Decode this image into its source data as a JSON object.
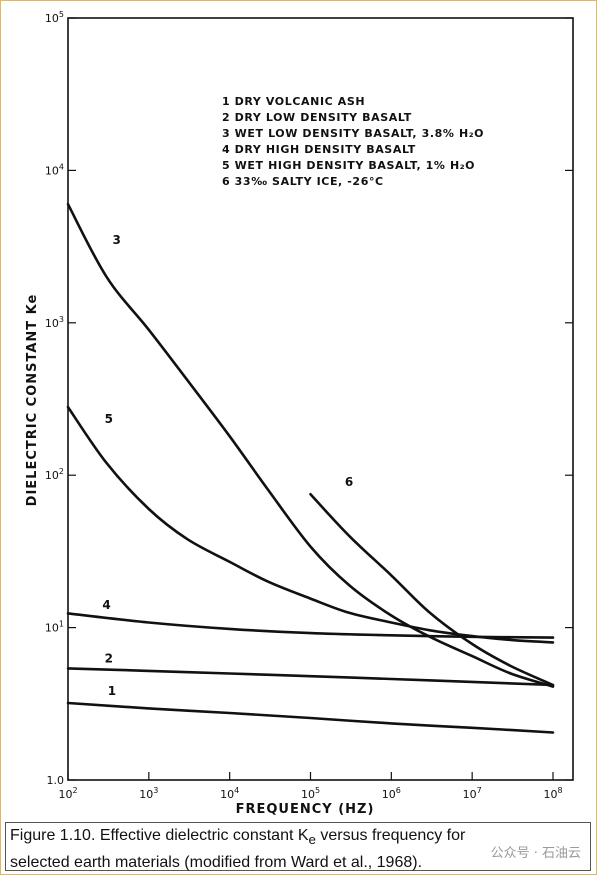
{
  "chart_data": {
    "type": "line",
    "xlabel": "FREQUENCY (HZ)",
    "ylabel": "DIELECTRIC CONSTANT Ke",
    "x_scale": "log",
    "y_scale": "log",
    "xlim": [
      100,
      100000000
    ],
    "ylim": [
      1,
      100000
    ],
    "grid": false,
    "legend_placement": "top-right",
    "x_ticks": [
      {
        "value": 100,
        "base": "10",
        "exp": "2"
      },
      {
        "value": 1000,
        "base": "10",
        "exp": "3"
      },
      {
        "value": 10000,
        "base": "10",
        "exp": "4"
      },
      {
        "value": 100000,
        "base": "10",
        "exp": "5"
      },
      {
        "value": 1000000,
        "base": "10",
        "exp": "6"
      },
      {
        "value": 10000000,
        "base": "10",
        "exp": "7"
      },
      {
        "value": 100000000,
        "base": "10",
        "exp": "8"
      }
    ],
    "y_ticks": [
      {
        "value": 1,
        "base": "1.0",
        "exp": ""
      },
      {
        "value": 10,
        "base": "10",
        "exp": "1"
      },
      {
        "value": 100,
        "base": "10",
        "exp": "2"
      },
      {
        "value": 1000,
        "base": "10",
        "exp": "3"
      },
      {
        "value": 10000,
        "base": "10",
        "exp": "4"
      },
      {
        "value": 100000,
        "base": "10",
        "exp": "5"
      }
    ],
    "legend": [
      "1  DRY VOLCANIC ASH",
      "2  DRY LOW DENSITY BASALT",
      "3  WET LOW DENSITY BASALT, 3.8% H₂O",
      "4  DRY HIGH DENSITY BASALT",
      "5  WET HIGH DENSITY BASALT, 1% H₂O",
      "6  33‰ SALTY ICE, -26°C"
    ],
    "series": [
      {
        "name": "1",
        "x": [
          100,
          1000,
          10000,
          100000,
          1000000,
          10000000,
          100000000
        ],
        "y": [
          3.2,
          2.95,
          2.75,
          2.55,
          2.35,
          2.2,
          2.05
        ]
      },
      {
        "name": "2",
        "x": [
          100,
          1000,
          10000,
          100000,
          1000000,
          10000000,
          100000000
        ],
        "y": [
          5.4,
          5.2,
          5.0,
          4.8,
          4.6,
          4.4,
          4.2
        ]
      },
      {
        "name": "3",
        "x": [
          100,
          300,
          1000,
          3000,
          10000,
          30000,
          100000,
          300000,
          1000000,
          3000000,
          10000000,
          30000000,
          100000000
        ],
        "y": [
          6000,
          2000,
          900,
          420,
          180,
          80,
          34,
          19,
          12,
          8.7,
          6.5,
          5.0,
          4.1
        ]
      },
      {
        "name": "4",
        "x": [
          100,
          1000,
          10000,
          100000,
          1000000,
          10000000,
          100000000
        ],
        "y": [
          12.4,
          10.8,
          9.8,
          9.2,
          8.9,
          8.7,
          8.6
        ]
      },
      {
        "name": "5",
        "x": [
          100,
          300,
          1000,
          3000,
          10000,
          30000,
          100000,
          300000,
          1000000,
          3000000,
          10000000,
          30000000,
          100000000
        ],
        "y": [
          280,
          120,
          60,
          38,
          27,
          20,
          15.5,
          12.5,
          10.8,
          9.6,
          8.8,
          8.3,
          8.0
        ]
      },
      {
        "name": "6",
        "x": [
          100000,
          300000,
          1000000,
          3000000,
          10000000,
          30000000,
          100000000
        ],
        "y": [
          75,
          40,
          22,
          12.5,
          7.8,
          5.6,
          4.2
        ]
      }
    ],
    "curve_labels": [
      {
        "text": "1",
        "x": 350,
        "y": 3.6
      },
      {
        "text": "2",
        "x": 320,
        "y": 5.9
      },
      {
        "text": "3",
        "x": 400,
        "y": 3300
      },
      {
        "text": "4",
        "x": 300,
        "y": 13.2
      },
      {
        "text": "5",
        "x": 320,
        "y": 220
      },
      {
        "text": "6",
        "x": 300000,
        "y": 85
      }
    ]
  },
  "caption": {
    "line1_prefix": "Figure 1.10. Effective dielectric constant K",
    "line1_sub": "e",
    "line1_suffix": " versus frequency for",
    "line2": "selected earth materials (modified from Ward et al., 1968)."
  },
  "watermark": "公众号 · 石油云"
}
